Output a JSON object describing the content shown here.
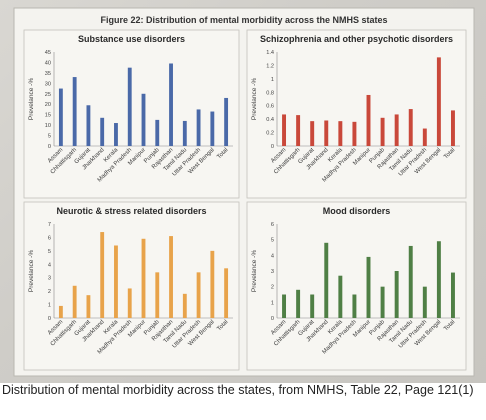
{
  "figure_title": "Figure 22: Distribution of mental morbidity across the NMHS states",
  "caption": "Distribution of mental morbidity across the states, from NMHS, Table 22, Page 121(1)",
  "chart_data": [
    {
      "type": "bar",
      "title": "Substance use disorders",
      "ylabel": "Prevelance -%",
      "ylim": [
        0,
        45
      ],
      "yticks": [
        0,
        5,
        10,
        15,
        20,
        25,
        30,
        35,
        40,
        45
      ],
      "categories": [
        "Assam",
        "Chhattisgarh",
        "Gujarat",
        "Jharkhand",
        "Kerala",
        "Madhya Pradesh",
        "Manipur",
        "Punjab",
        "Rajasthan",
        "Tamil Nadu",
        "Uttar Pradesh",
        "West Bengal",
        "Total"
      ],
      "values": [
        27.5,
        33,
        19.5,
        13.5,
        11,
        37.5,
        25,
        12.5,
        39.5,
        12,
        17.5,
        16.5,
        23
      ],
      "color": "#4a69a8"
    },
    {
      "type": "bar",
      "title": "Schizophrenia and other psychotic disorders",
      "ylabel": "Prevelance -%",
      "ylim": [
        0,
        1.4
      ],
      "yticks": [
        "0",
        "0.2",
        "0.4",
        "0.6",
        "0.8",
        "1",
        "1.2",
        "1.4"
      ],
      "categories": [
        "Assam",
        "Chhattisgarh",
        "Gujarat",
        "Jharkhand",
        "Kerala",
        "Madhya Pradesh",
        "Manipur",
        "Punjab",
        "Rajasthan",
        "Tamil Nadu",
        "Uttar Pradesh",
        "West Bengal",
        "Total"
      ],
      "values": [
        0.47,
        0.46,
        0.37,
        0.38,
        0.37,
        0.36,
        0.76,
        0.42,
        0.47,
        0.55,
        0.26,
        1.32,
        0.53
      ],
      "color": "#c9483a"
    },
    {
      "type": "bar",
      "title": "Neurotic & stress related disorders",
      "ylabel": "Prevelance -%",
      "ylim": [
        0,
        7
      ],
      "yticks": [
        0,
        1,
        2,
        3,
        4,
        5,
        6,
        7
      ],
      "categories": [
        "Assam",
        "Chhattisgarh",
        "Gujarat",
        "Jharkhand",
        "Kerala",
        "Madhya Pradesh",
        "Manipur",
        "Punjab",
        "Rajasthan",
        "Tamil Nadu",
        "Uttar Pradesh",
        "West Bengal",
        "Total"
      ],
      "values": [
        0.9,
        2.4,
        1.7,
        6.4,
        5.4,
        2.2,
        5.9,
        3.4,
        6.1,
        1.8,
        3.4,
        5.0,
        3.7
      ],
      "color": "#e8a34a"
    },
    {
      "type": "bar",
      "title": "Mood disorders",
      "ylabel": "Prevelance -%",
      "ylim": [
        0,
        6
      ],
      "yticks": [
        0,
        1,
        2,
        3,
        4,
        5,
        6
      ],
      "categories": [
        "Assam",
        "Chhattisgarh",
        "Gujarat",
        "Jharkhand",
        "Kerala",
        "Madhya Pradesh",
        "Manipur",
        "Punjab",
        "Rajasthan",
        "Tamil Nadu",
        "Uttar Pradesh",
        "West Bengal",
        "Total"
      ],
      "values": [
        1.5,
        1.8,
        1.5,
        4.8,
        2.7,
        1.5,
        3.9,
        2.0,
        3.0,
        4.6,
        2.0,
        4.9,
        2.9
      ],
      "color": "#4f7f45"
    }
  ]
}
